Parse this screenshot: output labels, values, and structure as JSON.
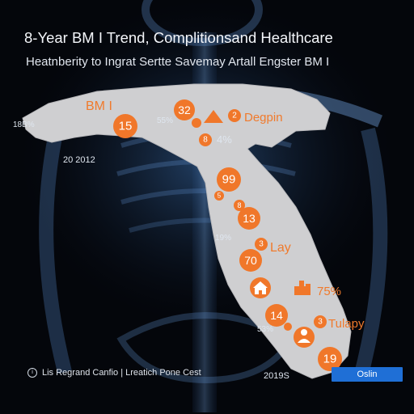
{
  "header": {
    "title": "8-Year BM I Trend, Complitionsand Healthcare",
    "subtitle": "Heatnberity to Ingrat Sertte Savemay Artall Engster BM I"
  },
  "map": {
    "land_color": "#cfcfd1",
    "marker_color": "#f0772a",
    "labels": [
      {
        "id": "bmi",
        "text": "BM I",
        "style": "orange"
      },
      {
        "id": "pct-left",
        "text": "18B%",
        "style": "white"
      },
      {
        "id": "year-2012",
        "text": "20 2012",
        "style": "white"
      },
      {
        "id": "pct-55",
        "text": "55%",
        "style": "white"
      },
      {
        "id": "degpin",
        "text": "Degpin",
        "style": "orange"
      },
      {
        "id": "pct-4",
        "text": "4%",
        "style": "white"
      },
      {
        "id": "pct-19",
        "text": "19%",
        "style": "white"
      },
      {
        "id": "lay",
        "text": "Lay",
        "style": "orange"
      },
      {
        "id": "pct-75",
        "text": "75%",
        "style": "orange"
      },
      {
        "id": "pct-53",
        "text": "53%",
        "style": "white"
      },
      {
        "id": "tulapy",
        "text": "Tulapy",
        "style": "orange"
      },
      {
        "id": "year-2019",
        "text": "2019S",
        "style": "white"
      }
    ],
    "markers": [
      {
        "id": "m15",
        "text": "15",
        "icon": ""
      },
      {
        "id": "m32",
        "text": "32",
        "icon": ""
      },
      {
        "id": "m-tri",
        "text": "",
        "icon": "triangle-icon"
      },
      {
        "id": "m2",
        "text": "2",
        "icon": ""
      },
      {
        "id": "m8",
        "text": "8",
        "icon": ""
      },
      {
        "id": "m-small1",
        "text": "",
        "icon": ""
      },
      {
        "id": "m99",
        "text": "99",
        "icon": ""
      },
      {
        "id": "m5",
        "text": "5",
        "icon": ""
      },
      {
        "id": "m8b",
        "text": "8",
        "icon": ""
      },
      {
        "id": "m13",
        "text": "13",
        "icon": ""
      },
      {
        "id": "m3",
        "text": "3",
        "icon": ""
      },
      {
        "id": "m70",
        "text": "70",
        "icon": ""
      },
      {
        "id": "m-house",
        "text": "",
        "icon": "house-icon"
      },
      {
        "id": "m-bar",
        "text": "",
        "icon": "chart-icon"
      },
      {
        "id": "m14",
        "text": "14",
        "icon": ""
      },
      {
        "id": "m-small2",
        "text": "",
        "icon": ""
      },
      {
        "id": "m3b",
        "text": "3",
        "icon": ""
      },
      {
        "id": "m-person",
        "text": "",
        "icon": "person-icon"
      },
      {
        "id": "m19",
        "text": "19",
        "icon": ""
      }
    ]
  },
  "footer": {
    "text": "Lis Regrand Canfio | Lreatich Pone Cest",
    "icon": "info-icon",
    "button_label": "Oslin"
  }
}
